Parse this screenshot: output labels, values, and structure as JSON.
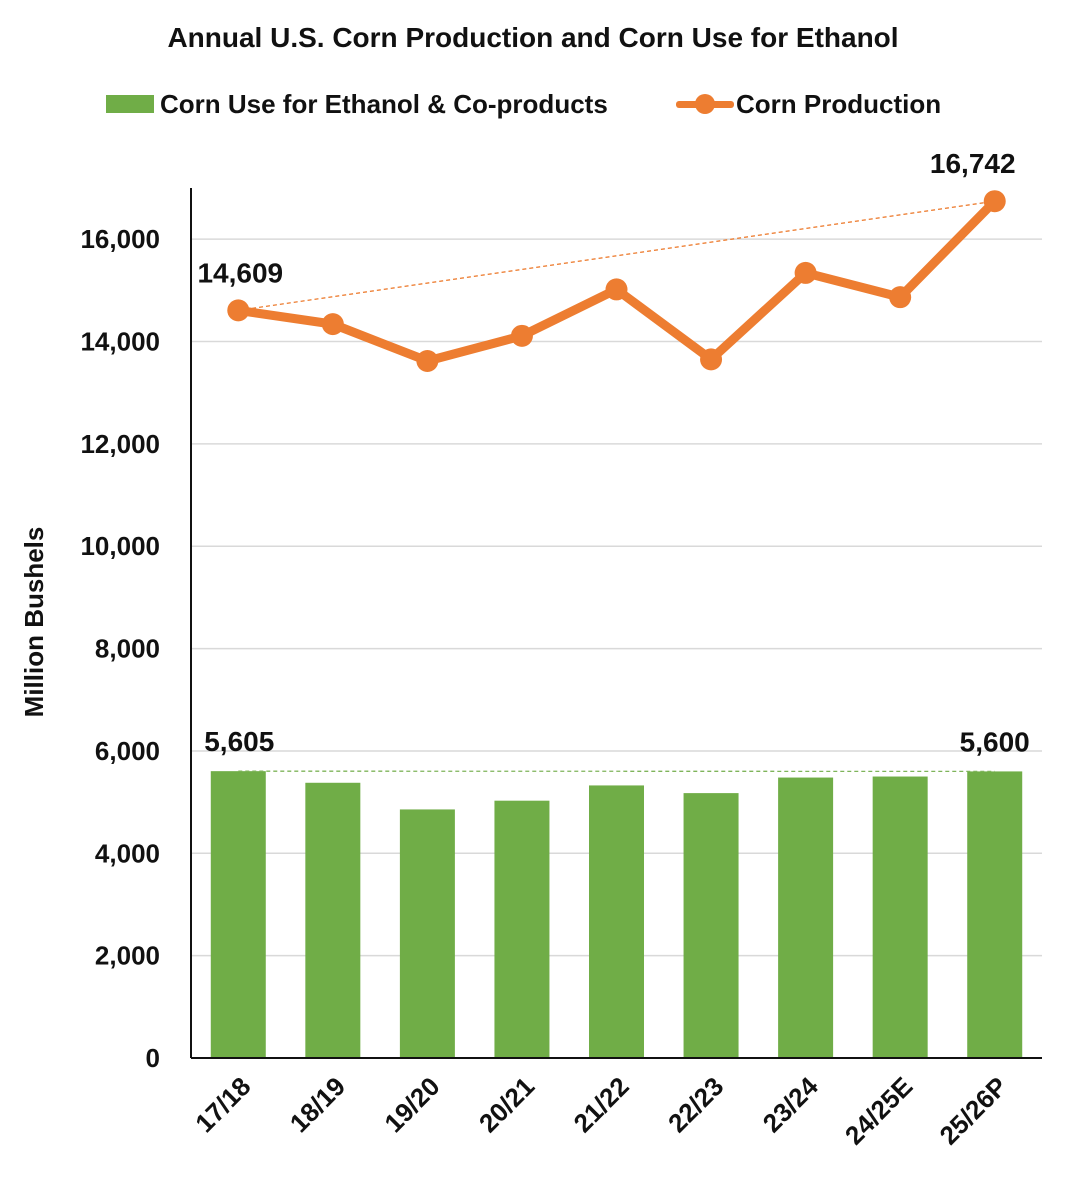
{
  "chart_data": {
    "type": "bar",
    "title": "Annual U.S. Corn Production and Corn Use for Ethanol",
    "ylabel": "Million Bushels",
    "xlabel": "",
    "ylim": [
      0,
      17000
    ],
    "yticks": [
      0,
      2000,
      4000,
      6000,
      8000,
      10000,
      12000,
      14000,
      16000
    ],
    "ytick_labels": [
      "0",
      "2,000",
      "4,000",
      "6,000",
      "8,000",
      "10,000",
      "12,000",
      "14,000",
      "16,000"
    ],
    "grid": true,
    "legend_position": "top",
    "categories": [
      "17/18",
      "18/19",
      "19/20",
      "20/21",
      "21/22",
      "22/23",
      "23/24",
      "24/25E",
      "25/26P"
    ],
    "series": [
      {
        "name": "Corn Use for Ethanol & Co-products",
        "type": "bar",
        "color": "#70ad47",
        "values": [
          5605,
          5378,
          4857,
          5028,
          5326,
          5176,
          5480,
          5500,
          5600
        ]
      },
      {
        "name": "Corn Production",
        "type": "line",
        "color": "#ed7d31",
        "values": [
          14609,
          14340,
          13620,
          14111,
          15018,
          13651,
          15341,
          14867,
          16742
        ]
      }
    ],
    "annotations": [
      {
        "series": 0,
        "index": 0,
        "text": "5,605"
      },
      {
        "series": 0,
        "index": 8,
        "text": "5,600"
      },
      {
        "series": 1,
        "index": 0,
        "text": "14,609"
      },
      {
        "series": 1,
        "index": 8,
        "text": "16,742"
      }
    ],
    "trend_lines": [
      {
        "series": 0,
        "from_index": 0,
        "to_index": 8,
        "style": "dashed"
      },
      {
        "series": 1,
        "from_index": 0,
        "to_index": 8,
        "style": "dashed"
      }
    ]
  }
}
